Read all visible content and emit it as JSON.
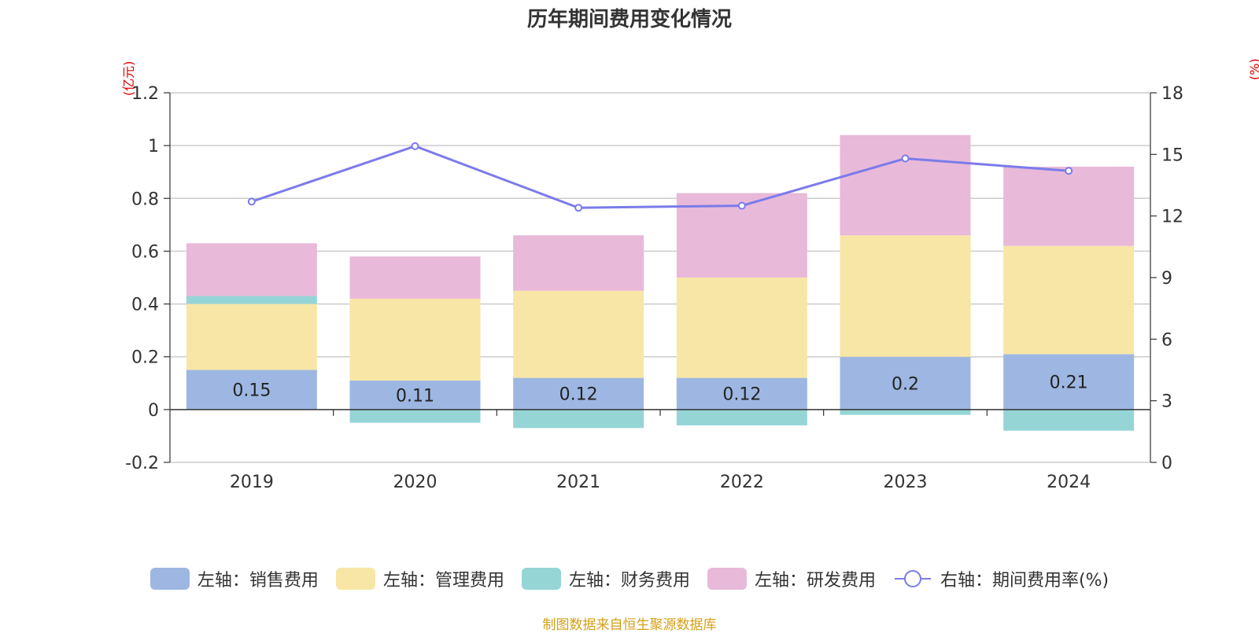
{
  "title": "历年期间费用变化情况",
  "left_unit": "(亿元)",
  "right_unit": "(%)",
  "source_note": "制图数据来自恒生聚源数据库",
  "legend": [
    {
      "label": "左轴：销售费用",
      "color": "#9db7e2"
    },
    {
      "label": "左轴：管理费用",
      "color": "#f8e6a6"
    },
    {
      "label": "左轴：财务费用",
      "color": "#96d5d6"
    },
    {
      "label": "左轴：研发费用",
      "color": "#e8b9d9"
    },
    {
      "label": "右轴：期间费用率(%)",
      "color": "#7b7bea"
    }
  ],
  "chart_data": {
    "type": "bar",
    "stacked": true,
    "title": "历年期间费用变化情况",
    "categories": [
      "2019",
      "2020",
      "2021",
      "2022",
      "2023",
      "2024"
    ],
    "y_left_label": "(亿元)",
    "y_left_range": [
      -0.2,
      1.2
    ],
    "y_left_ticks": [
      -0.2,
      0,
      0.2,
      0.4,
      0.6,
      0.8,
      1,
      1.2
    ],
    "y_right_label": "(%)",
    "y_right_range": [
      0,
      18
    ],
    "y_right_ticks": [
      0,
      3,
      6,
      9,
      12,
      15,
      18
    ],
    "grid": true,
    "legend_position": "bottom",
    "series": [
      {
        "name": "左轴：销售费用",
        "axis": "left",
        "type": "bar",
        "color": "#9db7e2",
        "values": [
          0.15,
          0.11,
          0.12,
          0.12,
          0.2,
          0.21
        ],
        "show_labels": true
      },
      {
        "name": "左轴：管理费用",
        "axis": "left",
        "type": "bar",
        "color": "#f8e6a6",
        "values": [
          0.25,
          0.31,
          0.33,
          0.38,
          0.46,
          0.41
        ]
      },
      {
        "name": "左轴：财务费用",
        "axis": "left",
        "type": "bar",
        "color": "#96d5d6",
        "values": [
          0.03,
          -0.05,
          -0.07,
          -0.06,
          -0.02,
          -0.08
        ]
      },
      {
        "name": "左轴：研发费用",
        "axis": "left",
        "type": "bar",
        "color": "#e8b9d9",
        "values": [
          0.2,
          0.16,
          0.21,
          0.32,
          0.38,
          0.3
        ]
      },
      {
        "name": "右轴：期间费用率(%)",
        "axis": "right",
        "type": "line",
        "color": "#7b7bea",
        "values": [
          12.7,
          15.4,
          12.4,
          12.5,
          14.8,
          14.2
        ]
      }
    ]
  }
}
